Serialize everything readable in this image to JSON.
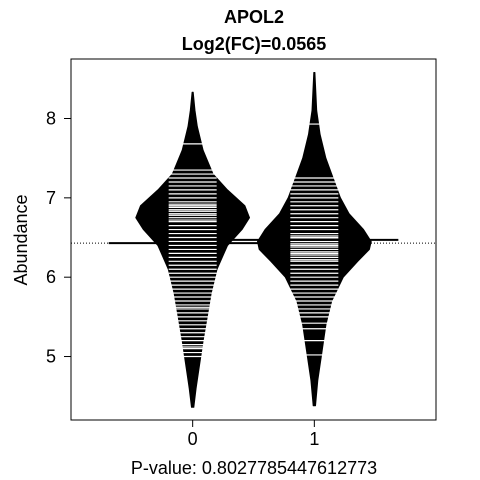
{
  "chart_data": {
    "type": "beanplot",
    "title": "APOL2",
    "subtitle": "Log2(FC)=0.0565",
    "xlabel": "P-value: 0.8027785447612773",
    "ylabel": "Abundance",
    "categories": [
      "0",
      "1"
    ],
    "y_ticks": [
      "5",
      "6",
      "7",
      "8"
    ],
    "ylim": [
      4.2,
      8.75
    ],
    "overall_mean": 6.43,
    "grid": false,
    "legend": "none",
    "series": [
      {
        "category": "0",
        "mean": 6.43,
        "density": [
          [
            4.36,
            0.02
          ],
          [
            4.6,
            0.06
          ],
          [
            4.9,
            0.12
          ],
          [
            5.2,
            0.18
          ],
          [
            5.5,
            0.25
          ],
          [
            5.8,
            0.32
          ],
          [
            6.1,
            0.42
          ],
          [
            6.4,
            0.6
          ],
          [
            6.6,
            0.85
          ],
          [
            6.75,
            0.98
          ],
          [
            6.9,
            0.9
          ],
          [
            7.1,
            0.6
          ],
          [
            7.3,
            0.35
          ],
          [
            7.6,
            0.18
          ],
          [
            7.9,
            0.08
          ],
          [
            8.1,
            0.04
          ],
          [
            8.33,
            0.01
          ]
        ],
        "points": [
          5.0,
          5.05,
          5.1,
          5.12,
          5.15,
          5.2,
          5.25,
          5.3,
          5.35,
          5.4,
          5.45,
          5.5,
          5.55,
          5.6,
          5.62,
          5.65,
          5.7,
          5.75,
          5.8,
          5.85,
          5.9,
          5.95,
          6.0,
          6.05,
          6.1,
          6.15,
          6.2,
          6.25,
          6.3,
          6.35,
          6.4,
          6.45,
          6.5,
          6.55,
          6.6,
          6.65,
          6.7,
          6.72,
          6.75,
          6.78,
          6.8,
          6.83,
          6.85,
          6.88,
          6.9,
          6.92,
          6.95,
          7.0,
          7.05,
          7.1,
          7.15,
          7.2,
          7.25,
          7.3,
          7.35,
          7.68
        ]
      },
      {
        "category": "1",
        "mean": 6.47,
        "density": [
          [
            4.38,
            0.02
          ],
          [
            4.7,
            0.06
          ],
          [
            5.0,
            0.12
          ],
          [
            5.4,
            0.2
          ],
          [
            5.7,
            0.3
          ],
          [
            6.0,
            0.5
          ],
          [
            6.2,
            0.75
          ],
          [
            6.35,
            0.95
          ],
          [
            6.45,
            0.98
          ],
          [
            6.6,
            0.85
          ],
          [
            6.8,
            0.6
          ],
          [
            7.0,
            0.45
          ],
          [
            7.2,
            0.35
          ],
          [
            7.5,
            0.2
          ],
          [
            7.8,
            0.1
          ],
          [
            8.1,
            0.04
          ],
          [
            8.58,
            0.01
          ]
        ],
        "points": [
          5.02,
          5.2,
          5.35,
          5.42,
          5.5,
          5.55,
          5.6,
          5.65,
          5.7,
          5.75,
          5.8,
          5.85,
          5.9,
          5.95,
          6.0,
          6.05,
          6.1,
          6.15,
          6.2,
          6.22,
          6.25,
          6.28,
          6.3,
          6.32,
          6.35,
          6.38,
          6.4,
          6.42,
          6.45,
          6.48,
          6.5,
          6.52,
          6.55,
          6.6,
          6.65,
          6.7,
          6.75,
          6.8,
          6.85,
          6.9,
          6.95,
          7.0,
          7.05,
          7.1,
          7.15,
          7.2,
          7.25,
          7.93
        ]
      }
    ]
  }
}
